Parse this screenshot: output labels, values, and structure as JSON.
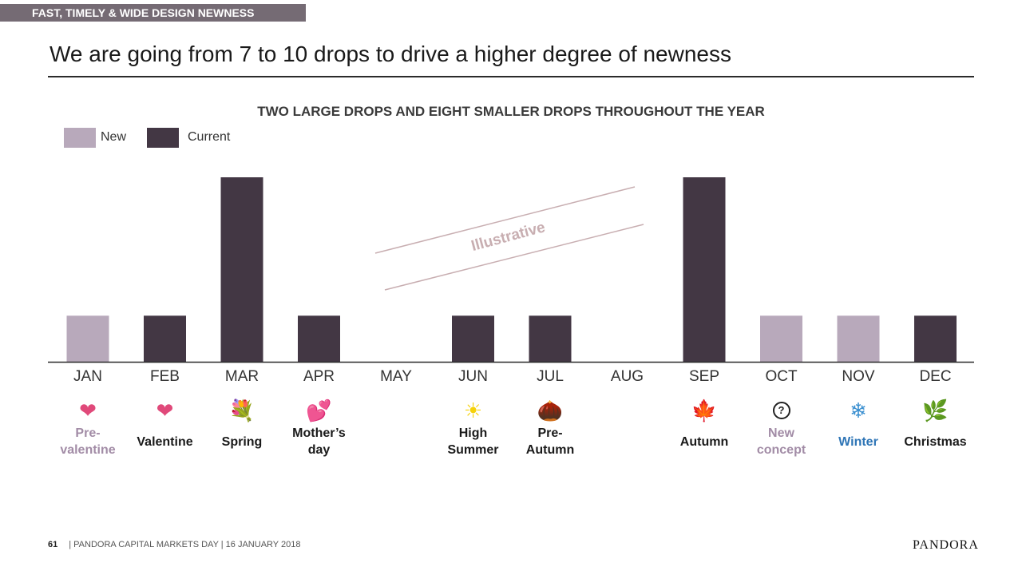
{
  "header": {
    "tag": "FAST, TIMELY & WIDE DESIGN NEWNESS",
    "title": "We are going from 7 to 10 drops to drive a higher degree of newness"
  },
  "chart_data": {
    "type": "bar",
    "title": "TWO LARGE DROPS AND EIGHT SMALLER DROPS THROUGHOUT THE YEAR",
    "categories": [
      "JAN",
      "FEB",
      "MAR",
      "APR",
      "MAY",
      "JUN",
      "JUL",
      "AUG",
      "SEP",
      "OCT",
      "NOV",
      "DEC"
    ],
    "values": [
      1,
      1,
      4,
      1,
      0,
      1,
      1,
      0,
      4,
      1,
      1,
      1
    ],
    "series_type": [
      "new",
      "current",
      "current",
      "current",
      null,
      "current",
      "current",
      null,
      "current",
      "new",
      "new",
      "current"
    ],
    "legend": [
      {
        "name": "New",
        "color": "#b8a9bb"
      },
      {
        "name": "Current",
        "color": "#433744"
      }
    ],
    "legend_position": "top-left",
    "ylim": [
      0,
      4
    ],
    "grid": false,
    "annotation": "Illustrative",
    "annotation_color": "#c8aeb1",
    "drops": [
      {
        "icon": "heart-icon",
        "glyph": "❤",
        "label": "Pre-\nvalentine",
        "color": "#a28ca6"
      },
      {
        "icon": "heart-icon",
        "glyph": "❤",
        "label": "Valentine",
        "color": "#1a1a1a"
      },
      {
        "icon": "flower-bouquet-icon",
        "glyph": "💐",
        "label": "Spring",
        "color": "#1a1a1a"
      },
      {
        "icon": "double-heart-icon",
        "glyph": "💕",
        "label": "Mother’s\nday",
        "color": "#1a1a1a"
      },
      {
        "icon": "",
        "glyph": "",
        "label": "",
        "color": "#1a1a1a"
      },
      {
        "icon": "sun-icon",
        "glyph": "☀",
        "label": "High\nSummer",
        "color": "#1a1a1a"
      },
      {
        "icon": "acorn-icon",
        "glyph": "🌰",
        "label": "Pre-\nAutumn",
        "color": "#1a1a1a"
      },
      {
        "icon": "",
        "glyph": "",
        "label": "",
        "color": "#1a1a1a"
      },
      {
        "icon": "maple-leaf-icon",
        "glyph": "🍁",
        "label": "Autumn",
        "color": "#1a1a1a"
      },
      {
        "icon": "question-circle-icon",
        "glyph": "?",
        "label": "New\nconcept",
        "color": "#a28ca6"
      },
      {
        "icon": "snowflake-icon",
        "glyph": "❄",
        "label": "Winter",
        "color": "#2e75b6"
      },
      {
        "icon": "holly-icon",
        "glyph": "🌿",
        "label": "Christmas",
        "color": "#1a1a1a"
      }
    ],
    "icon_colors": {
      "heart": "#e0497a",
      "sun": "#f5d10a",
      "acorn": "#b06a1c",
      "maple": "#c0501a",
      "snowflake": "#3a8fd0",
      "holly": "#2e7d32",
      "bouquet": "#d2416e"
    }
  },
  "footer": {
    "page_number": "61",
    "text": "| PANDORA CAPITAL MARKETS DAY | 16 JANUARY 2018",
    "logo": "PANDORA"
  }
}
